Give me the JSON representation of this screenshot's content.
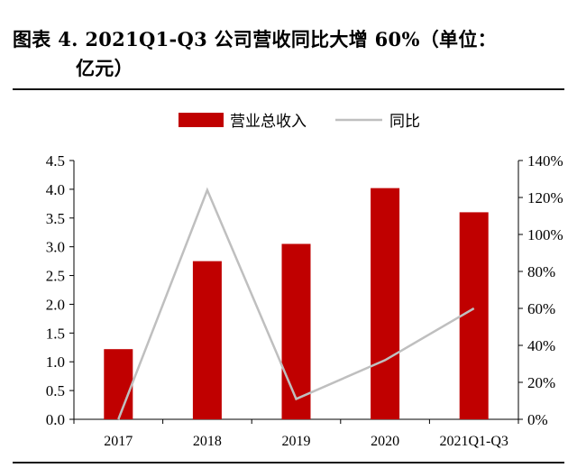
{
  "figure": {
    "title_line1": "图表 4.  2021Q1-Q3 公司营收同比大增 60%（单位：",
    "title_line2": "亿元）"
  },
  "chart_data": {
    "type": "bar",
    "categories": [
      "2017",
      "2018",
      "2019",
      "2020",
      "2021Q1-Q3"
    ],
    "series": [
      {
        "name": "营业总收入",
        "type": "bar",
        "axis": "left",
        "color": "#c00000",
        "values": [
          1.22,
          2.75,
          3.05,
          4.02,
          3.6
        ]
      },
      {
        "name": "同比",
        "type": "line",
        "axis": "right",
        "color": "#bfbfbf",
        "values": [
          0,
          124,
          11,
          32,
          60
        ]
      }
    ],
    "y_left": {
      "min": 0,
      "max": 4.5,
      "step": 0.5,
      "tick_labels": [
        "0.0",
        "0.5",
        "1.0",
        "1.5",
        "2.0",
        "2.5",
        "3.0",
        "3.5",
        "4.0",
        "4.5"
      ]
    },
    "y_right": {
      "min": 0,
      "max": 140,
      "step": 20,
      "tick_labels": [
        "0%",
        "20%",
        "40%",
        "60%",
        "80%",
        "100%",
        "120%",
        "140%"
      ]
    },
    "legend_position": "top-center",
    "grid": false
  }
}
